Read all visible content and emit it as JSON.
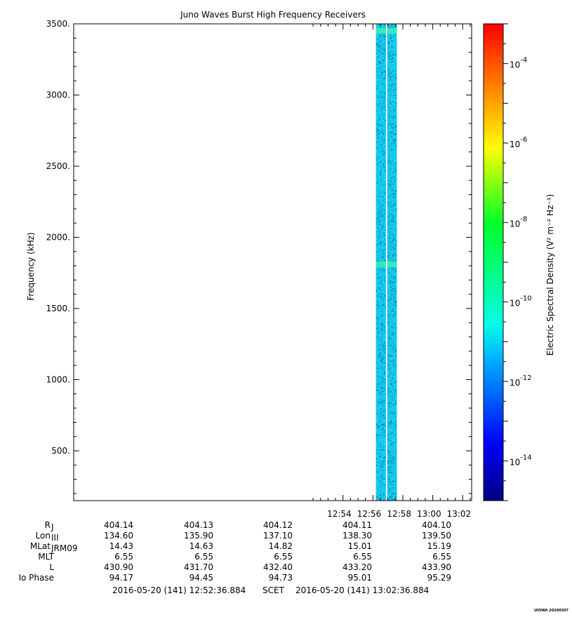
{
  "chart_data": {
    "type": "heatmap",
    "title": "Juno Waves Burst High Frequency Receivers",
    "ylabel": "Frequency (kHz)",
    "ylim": [
      150,
      3500
    ],
    "yticks": [
      "500.",
      "1000.",
      "1500.",
      "2000.",
      "2500.",
      "3000.",
      "3500."
    ],
    "ytick_values": [
      500,
      1000,
      1500,
      2000,
      2500,
      3000,
      3500
    ],
    "xlim_minutes": [
      12.6,
      13.0433
    ],
    "xticks": [
      "12:54",
      "12:56",
      "12:58",
      "13:00",
      "13:02"
    ],
    "xtick_minutes": [
      12.9,
      12.9333,
      12.9667,
      13.0,
      13.0333
    ],
    "data_segments_minutes": [
      {
        "start": 12.9367,
        "end": 12.9478
      },
      {
        "start": 12.9492,
        "end": 12.96
      }
    ],
    "emission_bands_khz": [
      3450,
      1810
    ],
    "background_level_exponent": -12,
    "colorbar": {
      "label": "Electric Spectral Density (V² m⁻² Hz⁻¹)",
      "log_scale": true,
      "range_exponent": [
        -15,
        -3
      ],
      "tick_labels": [
        "10-4",
        "10-6",
        "10-8",
        "10-10",
        "10-12",
        "10-14"
      ],
      "tick_exponents": [
        -4,
        -6,
        -8,
        -10,
        -12,
        -14
      ]
    },
    "ephemeris": {
      "row_labels": [
        {
          "main": "R",
          "sub": "J"
        },
        {
          "main": "Lon",
          "sub": "III"
        },
        {
          "main": "MLat",
          "sub": "JRM09"
        },
        {
          "main": "MLT",
          "sub": ""
        },
        {
          "main": "L",
          "sub": ""
        },
        {
          "main": "Io Phase",
          "sub": ""
        }
      ],
      "rows": [
        [
          "404.14",
          "404.13",
          "404.12",
          "404.11",
          "404.10"
        ],
        [
          "134.60",
          "135.90",
          "137.10",
          "138.30",
          "139.50"
        ],
        [
          "14.43",
          "14.63",
          "14.82",
          "15.01",
          "15.19"
        ],
        [
          "6.55",
          "6.55",
          "6.55",
          "6.55",
          "6.55"
        ],
        [
          "430.90",
          "431.70",
          "432.40",
          "433.20",
          "433.90"
        ],
        [
          "94.17",
          "94.45",
          "94.73",
          "95.01",
          "95.29"
        ]
      ]
    },
    "time_range": {
      "start": "2016-05-20 (141) 12:52:36.884",
      "label": "SCET",
      "end": "2016-05-20 (141) 13:02:36.884"
    },
    "footer_tag": "UIOWA 20200307"
  }
}
